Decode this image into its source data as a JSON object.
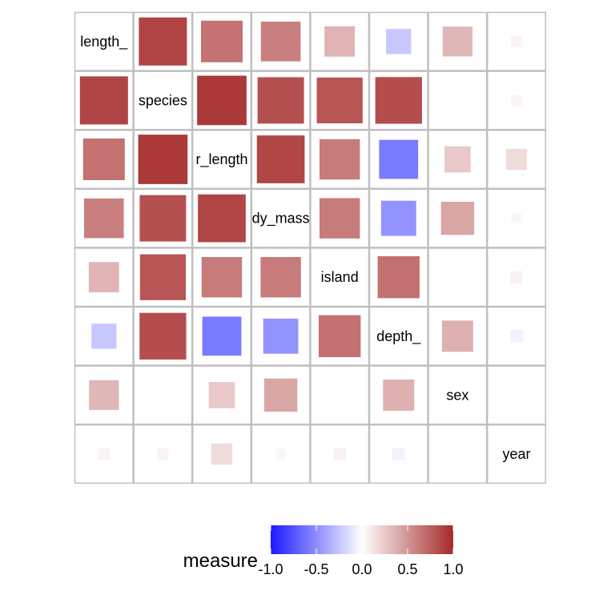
{
  "chart_data": {
    "type": "heatmap",
    "subtype": "correlation-matrix-squares",
    "variables": [
      "bill_length_mm",
      "species",
      "flipper_length_mm",
      "body_mass_g",
      "island",
      "bill_depth_mm",
      "sex",
      "year"
    ],
    "diagonal_labels": [
      "length_",
      "species",
      "r_length",
      "dy_mass",
      "island",
      "depth_",
      "sex",
      "year"
    ],
    "matrix": [
      [
        1.0,
        0.88,
        0.66,
        0.6,
        0.35,
        -0.24,
        0.34,
        0.05
      ],
      [
        0.88,
        1.0,
        0.93,
        0.82,
        0.8,
        0.83,
        0.0,
        0.05
      ],
      [
        0.66,
        0.93,
        1.0,
        0.87,
        0.62,
        -0.58,
        0.26,
        0.17
      ],
      [
        0.6,
        0.82,
        0.87,
        1.0,
        0.62,
        -0.47,
        0.42,
        0.04
      ],
      [
        0.35,
        0.8,
        0.62,
        0.62,
        1.0,
        0.67,
        0.01,
        0.06
      ],
      [
        -0.24,
        0.83,
        -0.58,
        -0.47,
        0.67,
        1.0,
        0.37,
        -0.06
      ],
      [
        0.34,
        0.0,
        0.26,
        0.42,
        0.01,
        0.37,
        1.0,
        0.0
      ],
      [
        0.05,
        0.05,
        0.17,
        0.04,
        0.06,
        -0.06,
        0.0,
        1.0
      ]
    ],
    "legend": {
      "title": "measure",
      "range": [
        -1,
        1
      ],
      "ticks": [
        "-1.0",
        "-0.5",
        "0.0",
        "0.5",
        "1.0"
      ],
      "position": "bottom"
    },
    "colors": {
      "low": "#1a1aff",
      "mid": "#ffffff",
      "high": "#a52a2a",
      "cell_border": "#bfbfbf"
    }
  }
}
